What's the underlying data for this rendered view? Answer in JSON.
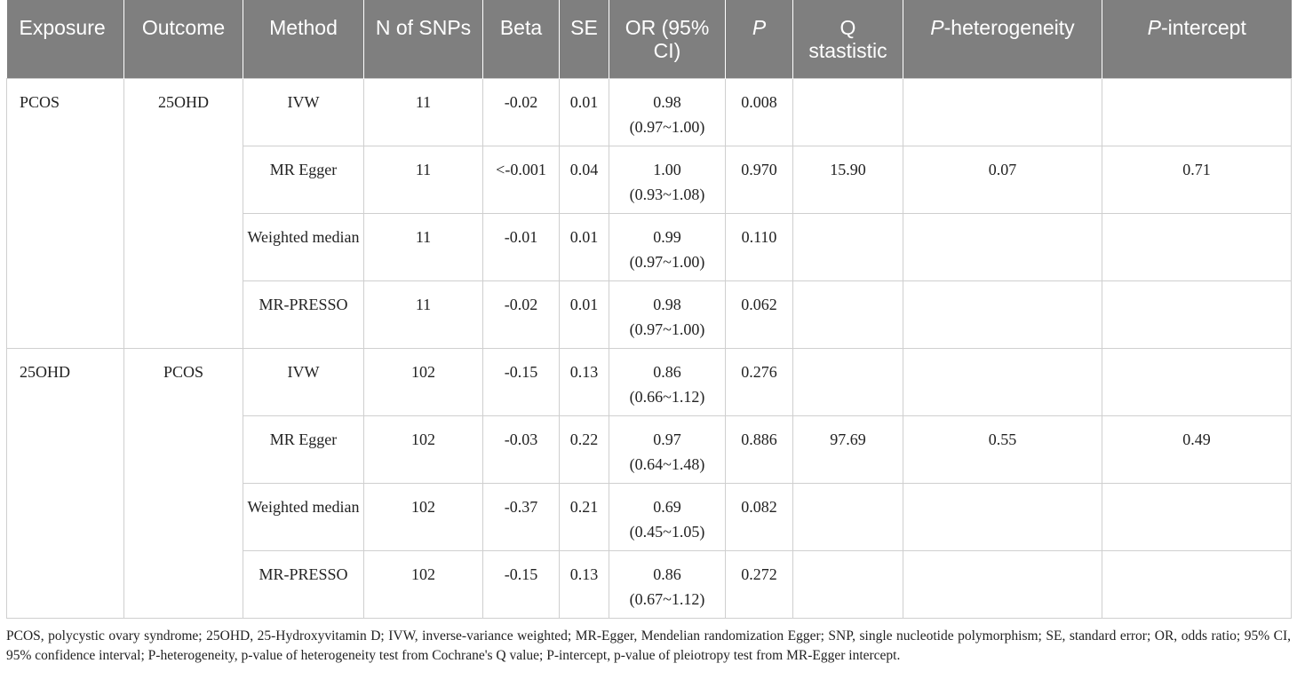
{
  "table": {
    "headers": [
      {
        "key": "exposure",
        "text": "Exposure"
      },
      {
        "key": "outcome",
        "text": "Outcome"
      },
      {
        "key": "method",
        "text": "Method"
      },
      {
        "key": "n_snps",
        "text": "N of SNPs"
      },
      {
        "key": "beta",
        "text": "Beta"
      },
      {
        "key": "se",
        "text": "SE"
      },
      {
        "key": "or_ci",
        "text": "OR (95% CI)"
      },
      {
        "key": "p",
        "text": "P",
        "italic": "P"
      },
      {
        "key": "q",
        "text": "Q stastistic"
      },
      {
        "key": "p_het",
        "italic": "P",
        "text": "-heterogeneity"
      },
      {
        "key": "p_int",
        "italic": "P",
        "text": "-intercept"
      }
    ],
    "groups": [
      {
        "exposure": "PCOS",
        "outcome": "25OHD",
        "q_statistic": "15.90",
        "p_heterogeneity": "0.07",
        "p_intercept": "0.71",
        "rows": [
          {
            "method": "IVW",
            "n": "11",
            "beta": "-0.02",
            "se": "0.01",
            "or": "0.98",
            "ci": "(0.97~1.00)",
            "p": "0.008"
          },
          {
            "method": "MR Egger",
            "n": "11",
            "beta": "<-0.001",
            "se": "0.04",
            "or": "1.00",
            "ci": "(0.93~1.08)",
            "p": "0.970"
          },
          {
            "method": "Weighted median",
            "n": "11",
            "beta": "-0.01",
            "se": "0.01",
            "or": "0.99",
            "ci": "(0.97~1.00)",
            "p": "0.110"
          },
          {
            "method": "MR-PRESSO",
            "n": "11",
            "beta": "-0.02",
            "se": "0.01",
            "or": "0.98",
            "ci": "(0.97~1.00)",
            "p": "0.062"
          }
        ]
      },
      {
        "exposure": "25OHD",
        "outcome": "PCOS",
        "q_statistic": "97.69",
        "p_heterogeneity": "0.55",
        "p_intercept": "0.49",
        "rows": [
          {
            "method": "IVW",
            "n": "102",
            "beta": "-0.15",
            "se": "0.13",
            "or": "0.86",
            "ci": "(0.66~1.12)",
            "p": "0.276"
          },
          {
            "method": "MR Egger",
            "n": "102",
            "beta": "-0.03",
            "se": "0.22",
            "or": "0.97",
            "ci": "(0.64~1.48)",
            "p": "0.886"
          },
          {
            "method": "Weighted median",
            "n": "102",
            "beta": "-0.37",
            "se": "0.21",
            "or": "0.69",
            "ci": "(0.45~1.05)",
            "p": "0.082"
          },
          {
            "method": "MR-PRESSO",
            "n": "102",
            "beta": "-0.15",
            "se": "0.13",
            "or": "0.86",
            "ci": "(0.67~1.12)",
            "p": "0.272"
          }
        ]
      }
    ]
  },
  "footnote": "PCOS, polycystic ovary syndrome; 25OHD, 25-Hydroxyvitamin D; IVW, inverse-variance weighted; MR-Egger, Mendelian randomization Egger; SNP, single nucleotide polymorphism; SE, standard error; OR, odds ratio; 95% CI, 95% confidence interval; P-heterogeneity, p-value of heterogeneity test from Cochrane's Q value; P-intercept, p-value of pleiotropy test from MR-Egger intercept.",
  "colors": {
    "header_background": "#7f7f7f",
    "header_text": "#ffffff",
    "grid_line": "#cfcfcf",
    "body_text": "#222222"
  }
}
